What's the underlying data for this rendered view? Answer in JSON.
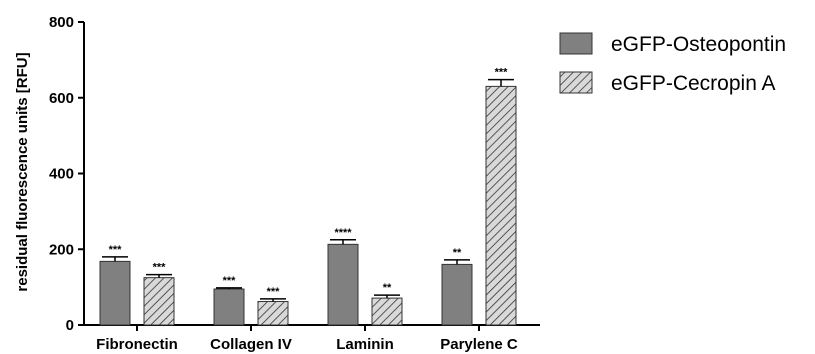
{
  "chart_data": {
    "type": "bar",
    "title": "",
    "xlabel": "",
    "ylabel": "residual fluorescence units [RFU]",
    "ylim": [
      0,
      800
    ],
    "yticks": [
      0,
      200,
      400,
      600,
      800
    ],
    "categories": [
      "Fibronectin",
      "Collagen IV",
      "Laminin",
      "Parylene C"
    ],
    "series": [
      {
        "name": "eGFP-Osteopontin",
        "pattern": "solid",
        "color": "#808080",
        "values": [
          168,
          95,
          213,
          160
        ],
        "errors": [
          12,
          3,
          12,
          12
        ],
        "significance": [
          "***",
          "***",
          "****",
          "**"
        ]
      },
      {
        "name": "eGFP-Cecropin A",
        "pattern": "hatched",
        "color": "#d9d9d9",
        "values": [
          125,
          62,
          71,
          630
        ],
        "errors": [
          8,
          7,
          8,
          18
        ],
        "significance": [
          "***",
          "***",
          "**",
          "***"
        ]
      }
    ],
    "grid": false,
    "legend": "right"
  }
}
